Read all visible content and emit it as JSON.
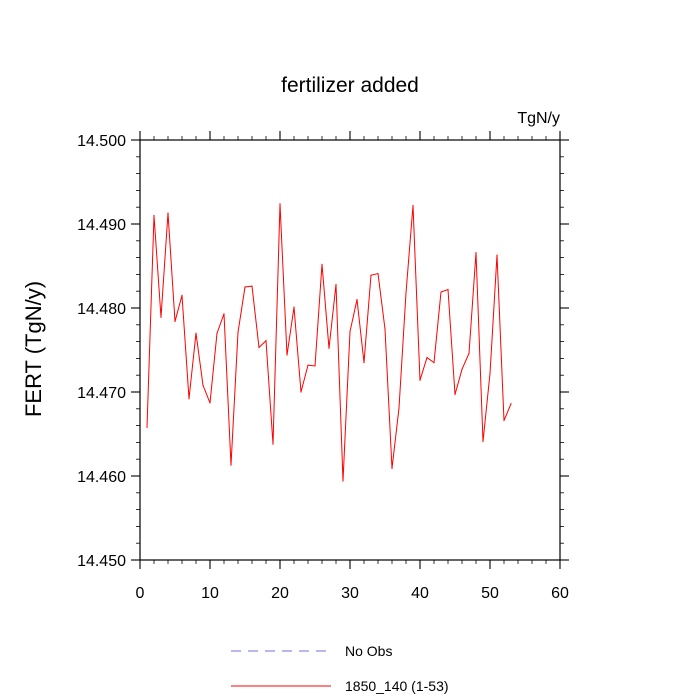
{
  "chart_data": {
    "type": "line",
    "title": "fertilizer added",
    "units": "TgN/y",
    "ylabel": "FERT  (TgN/y)",
    "xlabel": "",
    "xlim": [
      0,
      60
    ],
    "ylim": [
      14.45,
      14.5
    ],
    "xticks": [
      0,
      10,
      20,
      30,
      40,
      50,
      60
    ],
    "yticks": [
      "14.450",
      "14.460",
      "14.470",
      "14.480",
      "14.490",
      "14.500"
    ],
    "grid": false,
    "legend_position": "bottom",
    "series": [
      {
        "name": "1850_140 (1-53)",
        "color": "#ff0000",
        "style": "solid",
        "x": [
          1,
          2,
          3,
          4,
          5,
          6,
          7,
          8,
          9,
          10,
          11,
          12,
          13,
          14,
          15,
          16,
          17,
          18,
          19,
          20,
          21,
          22,
          23,
          24,
          25,
          26,
          27,
          28,
          29,
          30,
          31,
          32,
          33,
          34,
          35,
          36,
          37,
          38,
          39,
          40,
          41,
          42,
          43,
          44,
          45,
          46,
          47,
          48,
          49,
          50,
          51,
          52,
          53
        ],
        "values": [
          14.4658,
          14.491,
          14.4789,
          14.4913,
          14.4784,
          14.4815,
          14.4692,
          14.477,
          14.4708,
          14.4687,
          14.477,
          14.4793,
          14.4613,
          14.4771,
          14.4825,
          14.4826,
          14.4753,
          14.4761,
          14.4638,
          14.4924,
          14.4744,
          14.4801,
          14.47,
          14.4732,
          14.4731,
          14.4852,
          14.4752,
          14.4828,
          14.4594,
          14.4772,
          14.481,
          14.4735,
          14.4839,
          14.4841,
          14.4775,
          14.4609,
          14.4681,
          14.4818,
          14.4922,
          14.4714,
          14.4741,
          14.4735,
          14.4819,
          14.4822,
          14.4697,
          14.4727,
          14.4746,
          14.4866,
          14.4641,
          14.4722,
          14.4863,
          14.4666,
          14.4686
        ]
      },
      {
        "name": "No Obs",
        "color": "#6f6fe6",
        "style": "dashed",
        "x": [],
        "values": []
      }
    ]
  }
}
